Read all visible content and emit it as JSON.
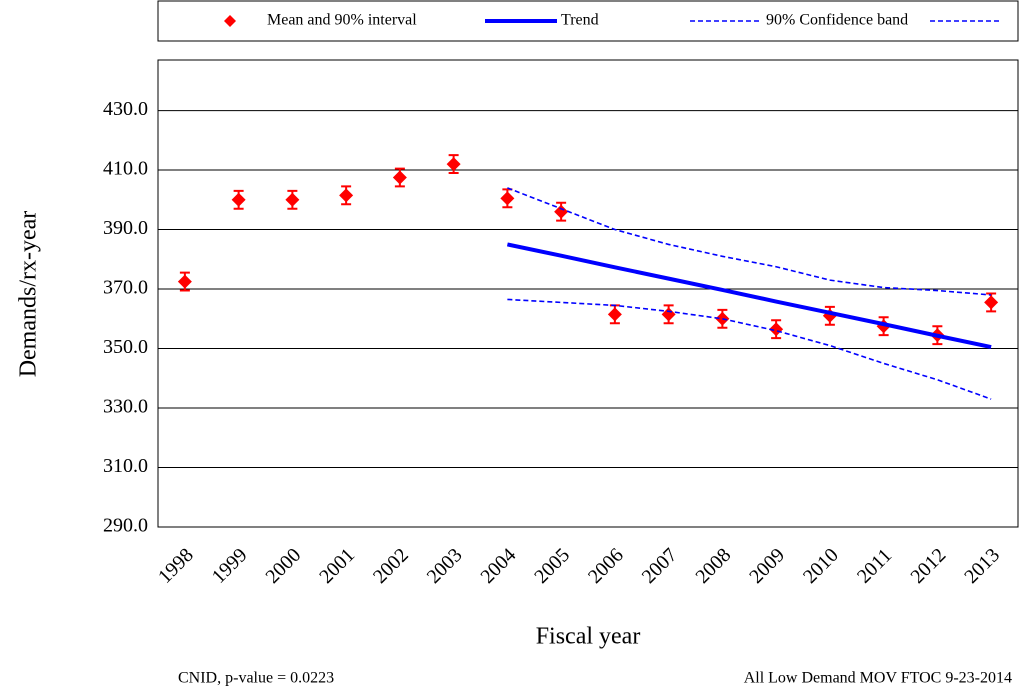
{
  "chart_data": {
    "type": "line",
    "x_label": "Fiscal year",
    "y_label": "Demands/rx-year",
    "footnotes": [
      "CNID, p-value = 0.0223",
      "All Low Demand MOV FTOC 9-23-2014"
    ],
    "categories": [
      "1998",
      "1999",
      "2000",
      "2001",
      "2002",
      "2003",
      "2004",
      "2005",
      "2006",
      "2007",
      "2008",
      "2009",
      "2010",
      "2011",
      "2012",
      "2013"
    ],
    "ylim": [
      290,
      447
    ],
    "yticks": [
      {
        "value": 290,
        "label": "290.0"
      },
      {
        "value": 310,
        "label": "310.0"
      },
      {
        "value": 330,
        "label": "330.0"
      },
      {
        "value": 350,
        "label": "350.0"
      },
      {
        "value": 370,
        "label": "370.0"
      },
      {
        "value": 390,
        "label": "390.0"
      },
      {
        "value": 410,
        "label": "410.0"
      },
      {
        "value": 430,
        "label": "430.0"
      }
    ],
    "grid": true,
    "legend": "top",
    "series": [
      {
        "name": "Mean and 90% interval",
        "color": "#ff0000",
        "style": "marker",
        "values": [
          372.5,
          400,
          400,
          401.5,
          407.5,
          412,
          400.5,
          396,
          361.5,
          361.5,
          360,
          356.5,
          361,
          357.5,
          354.5,
          365.5
        ],
        "errors": [
          3,
          3,
          3,
          3,
          3,
          3,
          3,
          3,
          3,
          3,
          3,
          3,
          3,
          3,
          3,
          3
        ]
      },
      {
        "name": "Trend",
        "color": "#0000ff",
        "style": "solid",
        "values": [
          null,
          null,
          null,
          null,
          null,
          null,
          385,
          381.2,
          377.3,
          373.5,
          369.7,
          365.8,
          362,
          358.2,
          354.3,
          350.5
        ]
      },
      {
        "name": "90% Confidence band",
        "color": "#0000ff",
        "style": "dashed",
        "values": [
          null,
          null,
          null,
          null,
          null,
          null,
          404,
          397,
          390,
          385,
          381,
          377.5,
          373,
          370.5,
          369.5,
          368
        ]
      },
      {
        "color": "#0000ff",
        "style": "dashed",
        "values": [
          null,
          null,
          null,
          null,
          null,
          null,
          366.5,
          365.5,
          364.5,
          362.5,
          360,
          356,
          351,
          345,
          339.5,
          333
        ]
      }
    ]
  }
}
